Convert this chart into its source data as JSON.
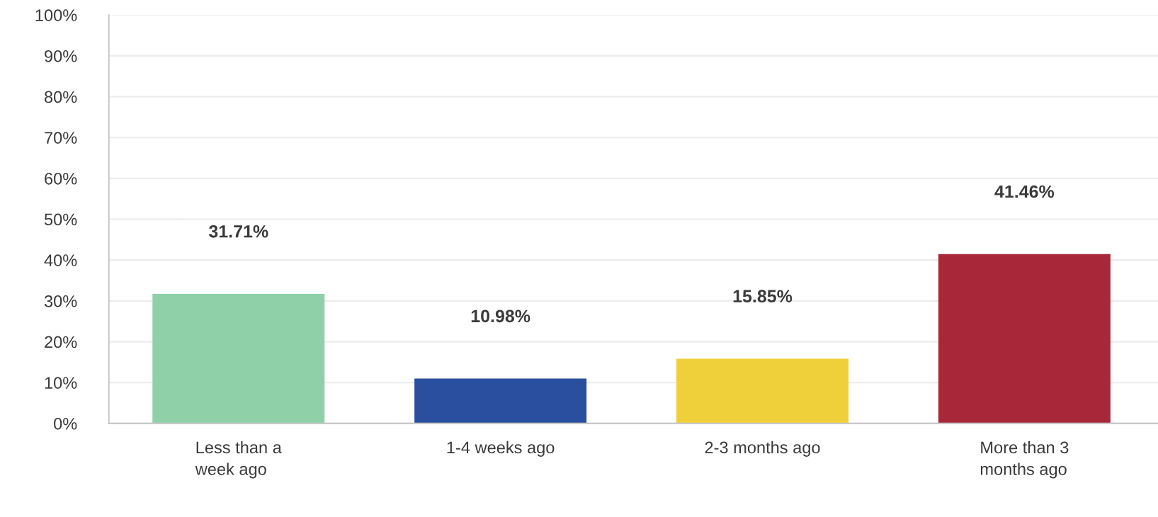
{
  "chart_data": {
    "type": "bar",
    "categories": [
      "Less than a\nweek ago",
      "1-4 weeks ago",
      "2-3 months ago",
      "More than 3\nmonths ago"
    ],
    "values": [
      31.71,
      10.98,
      15.85,
      41.46
    ],
    "colors": [
      "#8fd0a8",
      "#2a4f9e",
      "#f0d03a",
      "#a8283a"
    ],
    "value_labels": [
      "31.71%",
      "10.98%",
      "15.85%",
      "41.46%"
    ],
    "ylim": [
      0,
      100
    ],
    "yticks": [
      {
        "value": 0,
        "label": "0%"
      },
      {
        "value": 10,
        "label": "10%"
      },
      {
        "value": 20,
        "label": "20%"
      },
      {
        "value": 30,
        "label": "30%"
      },
      {
        "value": 40,
        "label": "40%"
      },
      {
        "value": 50,
        "label": "50%"
      },
      {
        "value": 60,
        "label": "60%"
      },
      {
        "value": 70,
        "label": "70%"
      },
      {
        "value": 80,
        "label": "80%"
      },
      {
        "value": 90,
        "label": "90%"
      },
      {
        "value": 100,
        "label": "100%"
      }
    ],
    "grid": "y",
    "legend": false
  }
}
